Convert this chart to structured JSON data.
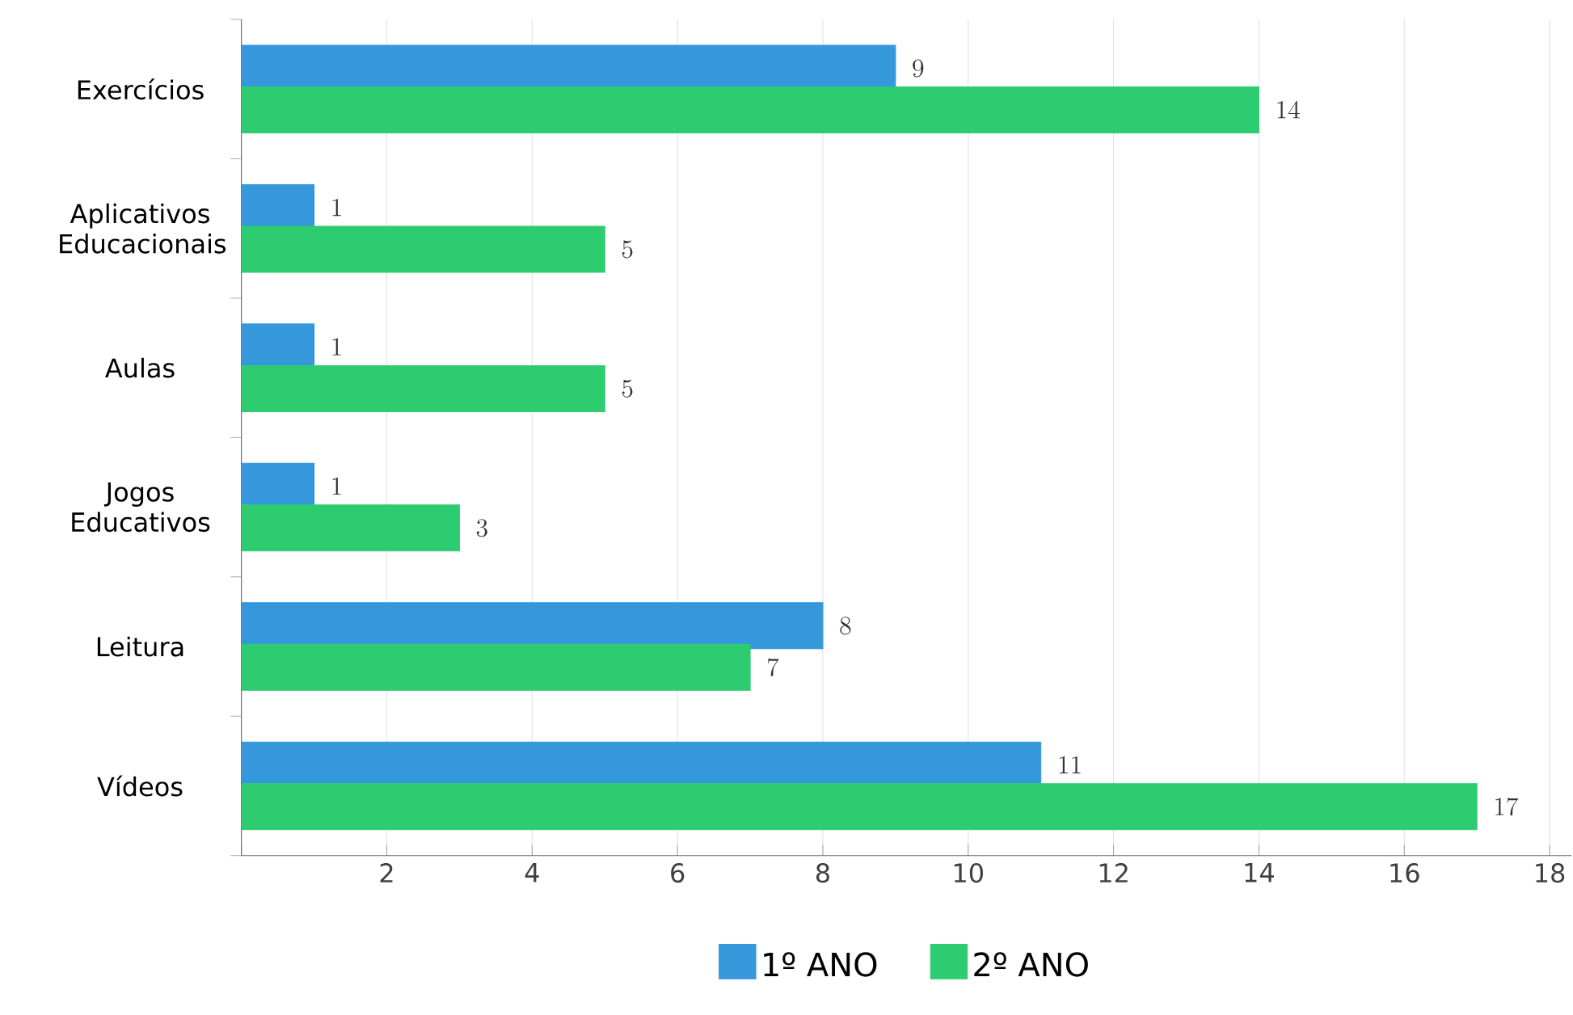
{
  "chart_data": {
    "type": "bar",
    "orientation": "horizontal",
    "categories": [
      "Exercícios",
      "Aplicativos Educacionais",
      "Aulas",
      "Jogos Educativos",
      "Leitura",
      "Vídeos"
    ],
    "series": [
      {
        "name": "1º ANO",
        "color": "#3498db",
        "values": [
          9,
          1,
          1,
          1,
          8,
          11
        ]
      },
      {
        "name": "2º ANO",
        "color": "#2ecc71",
        "values": [
          14,
          5,
          5,
          3,
          7,
          17
        ]
      }
    ],
    "xlim": [
      0,
      18.3
    ],
    "xticks": [
      {
        "value": 0,
        "label": null
      },
      2,
      4,
      6,
      8,
      10,
      12,
      14,
      16,
      18
    ],
    "grid": "x",
    "legend": "bottom",
    "data_labels": true
  }
}
